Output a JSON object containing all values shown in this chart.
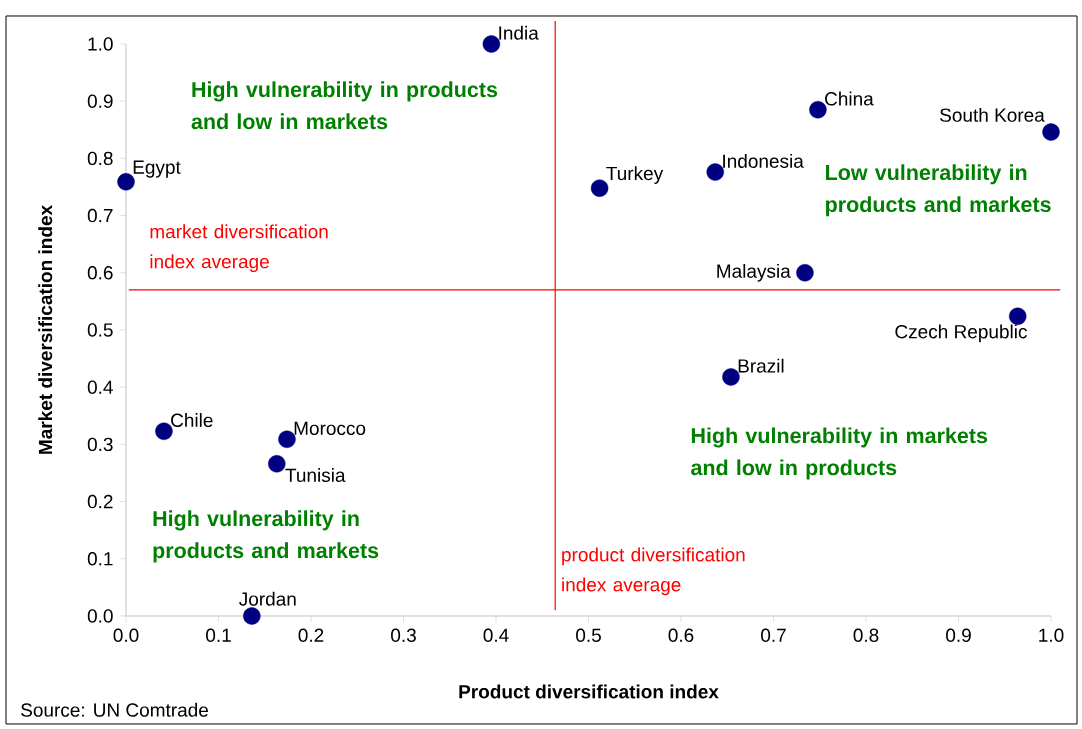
{
  "chart_data": {
    "type": "scatter",
    "xlabel": "Product diversification index",
    "ylabel": "Market diversification index",
    "series": [
      {
        "color": "#000080",
        "x": [
          0.395,
          0.0,
          0.512,
          0.637,
          0.748,
          1.0,
          0.734,
          0.964,
          0.654,
          0.041,
          0.174,
          0.163,
          0.136
        ],
        "values": [
          1.0,
          0.759,
          0.748,
          0.776,
          0.885,
          0.846,
          0.6,
          0.524,
          0.418,
          0.323,
          0.309,
          0.266,
          0.0
        ]
      }
    ],
    "xlim": [
      0,
      1
    ],
    "ylim": [
      0,
      1
    ],
    "xticks": [
      {
        "value": 0,
        "label": "0.0"
      },
      0.1,
      0.2,
      0.3,
      0.4,
      0.5,
      0.6,
      0.7,
      0.8,
      0.9,
      {
        "value": 1,
        "label": "1.0"
      }
    ],
    "yticks": [
      {
        "value": 0,
        "label": "0.0"
      },
      0.1,
      0.2,
      0.3,
      0.4,
      0.5,
      0.6,
      0.7,
      0.8,
      0.9,
      {
        "value": 1,
        "label": "1.0"
      }
    ],
    "grid": false,
    "marker": "circle",
    "ref_lines": [
      {
        "axis": "x",
        "value": 0.464,
        "label": "product diversification index average",
        "color": "#ff0000"
      },
      {
        "axis": "y",
        "value": 0.57,
        "label": "market diversification index average",
        "color": "#ff0000"
      }
    ],
    "annotations": [
      {
        "text": "India",
        "x": 0.395,
        "y": 1.0
      },
      {
        "text": "Egypt",
        "x": 0.0,
        "y": 0.759
      },
      {
        "text": "Turkey",
        "x": 0.512,
        "y": 0.748
      },
      {
        "text": "Indonesia",
        "x": 0.637,
        "y": 0.776
      },
      {
        "text": "China",
        "x": 0.748,
        "y": 0.885
      },
      {
        "text": "South Korea",
        "x": 1.0,
        "y": 0.846
      },
      {
        "text": "Malaysia",
        "x": 0.734,
        "y": 0.6
      },
      {
        "text": "Czech Republic",
        "x": 0.964,
        "y": 0.524
      },
      {
        "text": "Brazil",
        "x": 0.654,
        "y": 0.418
      },
      {
        "text": "Chile",
        "x": 0.041,
        "y": 0.323
      },
      {
        "text": "Morocco",
        "x": 0.174,
        "y": 0.309
      },
      {
        "text": "Tunisia",
        "x": 0.163,
        "y": 0.266
      },
      {
        "text": "Jordan",
        "x": 0.136,
        "y": 0.0
      },
      "High vulnerability in products and low in markets",
      "Low vulnerability in products and markets",
      "High vulnerability in products and markets",
      "High vulnerability in markets and low in products",
      "Source: UN Comtrade"
    ]
  }
}
